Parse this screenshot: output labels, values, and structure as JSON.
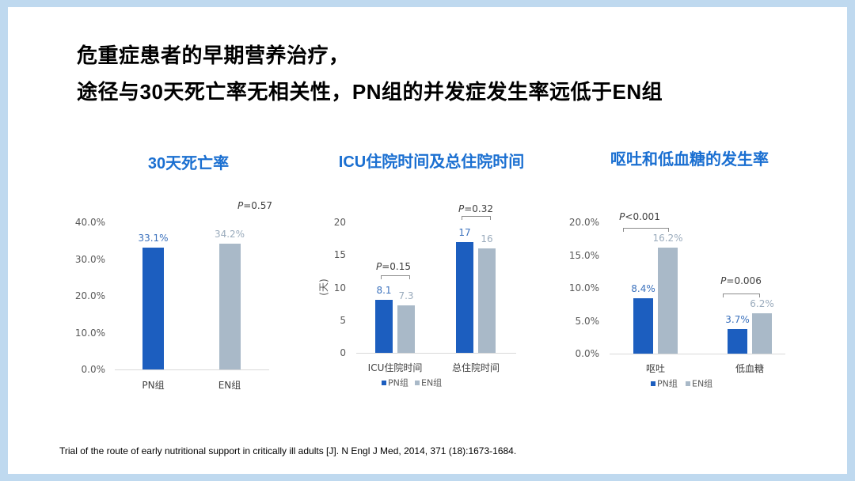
{
  "slide": {
    "title_line1": "危重症患者的早期营养治疗，",
    "title_line2": "途径与30天死亡率无相关性，PN组的并发症发生率远低于EN组",
    "citation": "Trial of the route of early nutritional support in critically ill adults [J]. N Engl J Med, 2014, 371 (18):1673-1684."
  },
  "colors": {
    "frame": "#bfd9ef",
    "background": "#ffffff",
    "heading_text": "#000000",
    "chart_title": "#1a6fd1",
    "axis": "#d9d9d9",
    "tick_text": "#595959",
    "bracket": "#8c8c8c"
  },
  "chart_data": [
    {
      "type": "bar",
      "title": "30天死亡率",
      "categories": [
        "PN组",
        "EN组"
      ],
      "values": [
        33.1,
        34.2
      ],
      "value_labels": [
        "33.1%",
        "34.2%"
      ],
      "bar_colors": [
        "#1c5ebf",
        "#a9b9c8"
      ],
      "label_colors": [
        "#3c72bd",
        "#9aabbc"
      ],
      "ylim": [
        0,
        40
      ],
      "yticks": [
        0,
        10,
        20,
        30,
        40
      ],
      "ytick_labels": [
        "0.0%",
        "10.0%",
        "20.0%",
        "30.0%",
        "40.0%"
      ],
      "grid": false,
      "legend": false,
      "annotations": [
        {
          "text": "P=0.57"
        }
      ]
    },
    {
      "type": "bar",
      "title": "ICU住院时间及总住院时间",
      "categories": [
        "ICU住院时间",
        "总住院时间"
      ],
      "series": [
        {
          "name": "PN组",
          "values": [
            8.1,
            17
          ],
          "labels": [
            "8.1",
            "17"
          ],
          "color": "#1c5ebf",
          "label_color": "#3c72bd"
        },
        {
          "name": "EN组",
          "values": [
            7.3,
            16
          ],
          "labels": [
            "7.3",
            "16"
          ],
          "color": "#a9b9c8",
          "label_color": "#9aabbc"
        }
      ],
      "ylabel": "(天)",
      "ylim": [
        0,
        20
      ],
      "yticks": [
        0,
        5,
        10,
        15,
        20
      ],
      "ytick_labels": [
        "0",
        "5",
        "10",
        "15",
        "20"
      ],
      "grid": false,
      "legend": "bottom",
      "annotations": [
        {
          "text": "P=0.15",
          "category_index": 0
        },
        {
          "text": "P=0.32",
          "category_index": 1
        }
      ]
    },
    {
      "type": "bar",
      "title": "呕吐和低血糖的发生率",
      "categories": [
        "呕吐",
        "低血糖"
      ],
      "series": [
        {
          "name": "PN组",
          "values": [
            8.4,
            3.7
          ],
          "labels": [
            "8.4%",
            "3.7%"
          ],
          "color": "#1c5ebf",
          "label_color": "#3c72bd"
        },
        {
          "name": "EN组",
          "values": [
            16.2,
            6.2
          ],
          "labels": [
            "16.2%",
            "6.2%"
          ],
          "color": "#a9b9c8",
          "label_color": "#9aabbc"
        }
      ],
      "ylim": [
        0,
        20
      ],
      "yticks": [
        0,
        5,
        10,
        15,
        20
      ],
      "ytick_labels": [
        "0.0%",
        "5.0%",
        "10.0%",
        "15.0%",
        "20.0%"
      ],
      "grid": false,
      "legend": "bottom",
      "annotations": [
        {
          "text": "P<0.001",
          "category_index": 0
        },
        {
          "text": "P=0.006",
          "category_index": 1
        }
      ]
    }
  ]
}
